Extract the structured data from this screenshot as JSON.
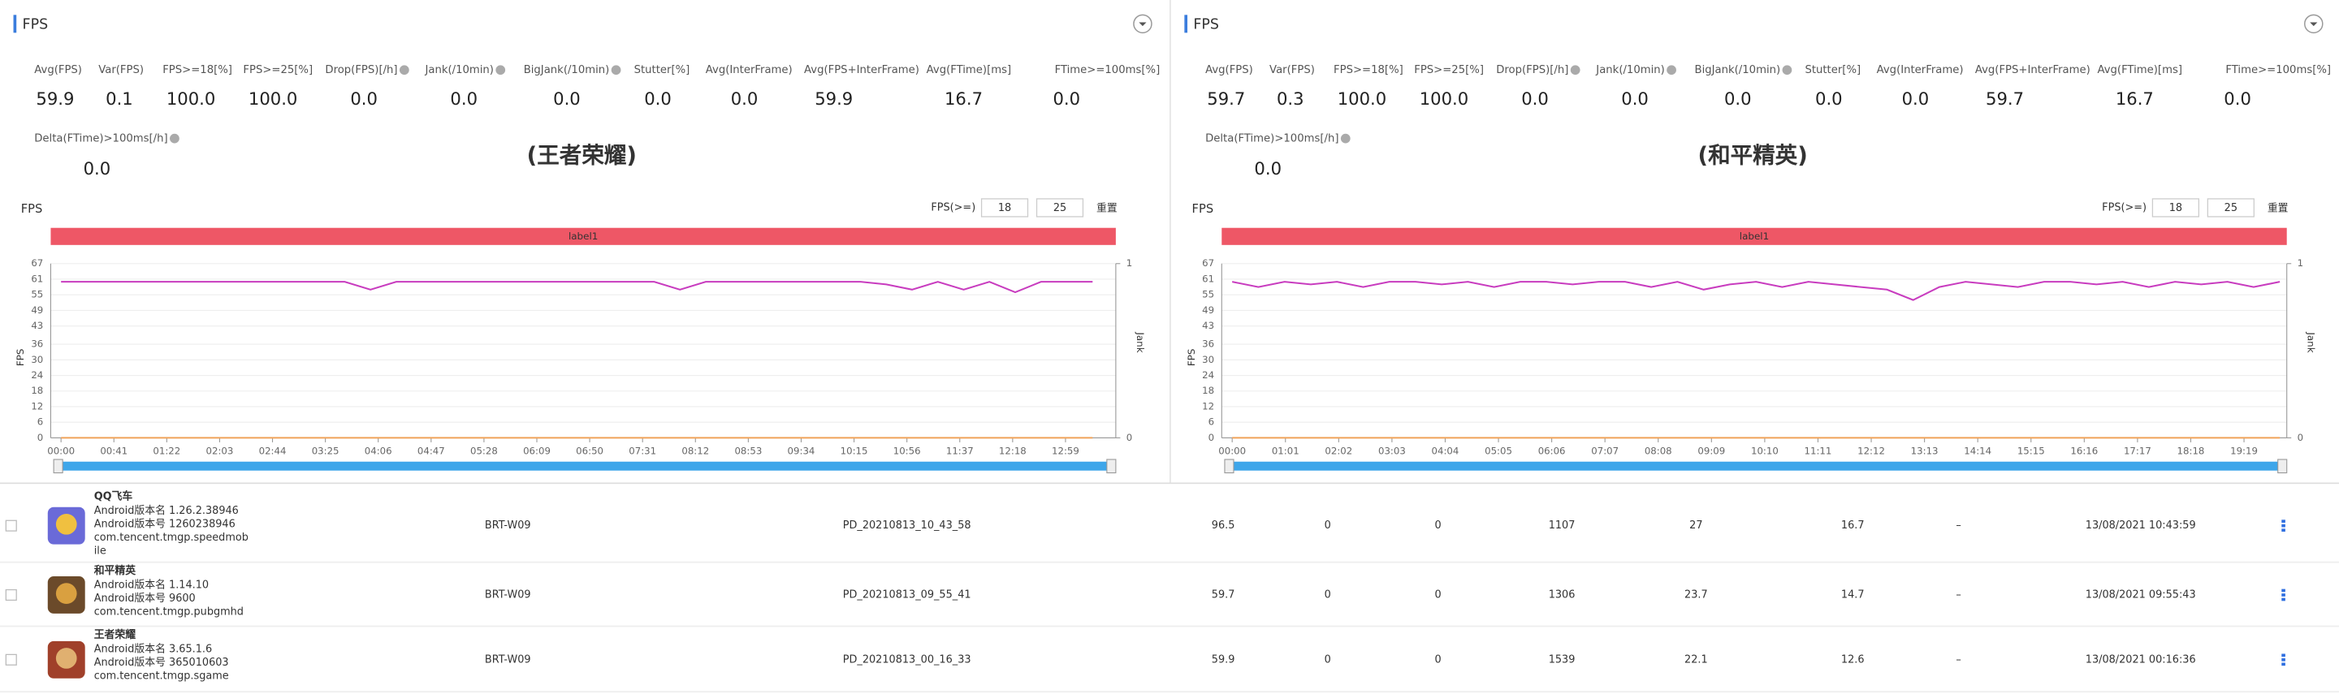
{
  "panels": [
    {
      "title": "FPS",
      "metrics": [
        {
          "label": "Avg(FPS)",
          "value": "59.9"
        },
        {
          "label": "Var(FPS)",
          "value": "0.1"
        },
        {
          "label": "FPS>=18[%]",
          "value": "100.0"
        },
        {
          "label": "FPS>=25[%]",
          "value": "100.0"
        },
        {
          "label": "Drop(FPS)[/h]",
          "value": "0.0"
        },
        {
          "label": "Jank(/10min)",
          "value": "0.0"
        },
        {
          "label": "BigJank(/10min)",
          "value": "0.0"
        },
        {
          "label": "Stutter[%]",
          "value": "0.0"
        },
        {
          "label": "Avg(InterFrame)",
          "value": "0.0"
        },
        {
          "label": "Avg(FPS+InterFrame)",
          "value": "59.9"
        },
        {
          "label": "Avg(FTime)[ms]",
          "value": "16.7"
        },
        {
          "label": "FTime>=100ms[%]",
          "value": "0.0"
        },
        {
          "label": "Delta(FTime)>100ms[/h]",
          "value": "0.0"
        }
      ],
      "annotation": "(王者荣耀)",
      "threshold_label": "FPS(>=)",
      "thresholds": [
        18,
        25
      ],
      "reset": "重置"
    },
    {
      "title": "FPS",
      "metrics": [
        {
          "label": "Avg(FPS)",
          "value": "59.7"
        },
        {
          "label": "Var(FPS)",
          "value": "0.3"
        },
        {
          "label": "FPS>=18[%]",
          "value": "100.0"
        },
        {
          "label": "FPS>=25[%]",
          "value": "100.0"
        },
        {
          "label": "Drop(FPS)[/h]",
          "value": "0.0"
        },
        {
          "label": "Jank(/10min)",
          "value": "0.0"
        },
        {
          "label": "BigJank(/10min)",
          "value": "0.0"
        },
        {
          "label": "Stutter[%]",
          "value": "0.0"
        },
        {
          "label": "Avg(InterFrame)",
          "value": "0.0"
        },
        {
          "label": "Avg(FPS+InterFrame)",
          "value": "59.7"
        },
        {
          "label": "Avg(FTime)[ms]",
          "value": "16.7"
        },
        {
          "label": "FTime>=100ms[%]",
          "value": "0.0"
        },
        {
          "label": "Delta(FTime)>100ms[/h]",
          "value": "0.0"
        }
      ],
      "annotation": "(和平精英)",
      "threshold_label": "FPS(>=)",
      "thresholds": [
        18,
        25
      ],
      "reset": "重置"
    }
  ],
  "chart_data": [
    {
      "type": "line",
      "title": "FPS",
      "band_label": "label1",
      "y_label": "FPS",
      "y2_label": "Jank",
      "xlim": [
        -8,
        818
      ],
      "xticks": [
        {
          "value": 0,
          "label": "00:00"
        },
        {
          "value": 41,
          "label": "00:41"
        },
        {
          "value": 82,
          "label": "01:22"
        },
        {
          "value": 123,
          "label": "02:03"
        },
        {
          "value": 164,
          "label": "02:44"
        },
        {
          "value": 205,
          "label": "03:25"
        },
        {
          "value": 246,
          "label": "04:06"
        },
        {
          "value": 287,
          "label": "04:47"
        },
        {
          "value": 328,
          "label": "05:28"
        },
        {
          "value": 369,
          "label": "06:09"
        },
        {
          "value": 410,
          "label": "06:50"
        },
        {
          "value": 451,
          "label": "07:31"
        },
        {
          "value": 492,
          "label": "08:12"
        },
        {
          "value": 533,
          "label": "08:53"
        },
        {
          "value": 574,
          "label": "09:34"
        },
        {
          "value": 615,
          "label": "10:15"
        },
        {
          "value": 656,
          "label": "10:56"
        },
        {
          "value": 697,
          "label": "11:37"
        },
        {
          "value": 738,
          "label": "12:18"
        },
        {
          "value": 779,
          "label": "12:59"
        }
      ],
      "ylim": [
        0,
        67
      ],
      "yticks": [
        0,
        6,
        12,
        18,
        24,
        30,
        36,
        43,
        49,
        55,
        61,
        67
      ],
      "y2lim": [
        0,
        1
      ],
      "y2ticks": [
        0,
        1
      ],
      "x": [
        0,
        20,
        40,
        60,
        80,
        100,
        120,
        140,
        160,
        180,
        200,
        220,
        240,
        260,
        280,
        300,
        320,
        340,
        360,
        380,
        400,
        420,
        440,
        460,
        480,
        500,
        520,
        540,
        560,
        580,
        600,
        620,
        640,
        660,
        680,
        700,
        720,
        740,
        760,
        780,
        800
      ],
      "series": [
        {
          "name": "FPS",
          "color": "#c83cbf",
          "values": [
            60,
            60,
            60,
            60,
            60,
            60,
            60,
            60,
            60,
            60,
            60,
            60,
            57,
            60,
            60,
            60,
            60,
            60,
            60,
            60,
            60,
            60,
            60,
            60,
            57,
            60,
            60,
            60,
            60,
            60,
            60,
            60,
            59,
            57,
            60,
            57,
            60,
            56,
            60,
            60,
            60
          ]
        },
        {
          "name": "Jank",
          "color": "#f0a35a",
          "axis": "y2",
          "values": [
            0,
            0,
            0,
            0,
            0,
            0,
            0,
            0,
            0,
            0,
            0,
            0,
            0,
            0,
            0,
            0,
            0,
            0,
            0,
            0,
            0,
            0,
            0,
            0,
            0,
            0,
            0,
            0,
            0,
            0,
            0,
            0,
            0,
            0,
            0,
            0,
            0,
            0,
            0,
            0,
            0
          ]
        }
      ]
    },
    {
      "type": "line",
      "title": "FPS",
      "band_label": "label1",
      "y_label": "FPS",
      "y2_label": "Jank",
      "xlim": [
        -12,
        1208
      ],
      "xticks": [
        {
          "value": 0,
          "label": "00:00"
        },
        {
          "value": 61,
          "label": "01:01"
        },
        {
          "value": 122,
          "label": "02:02"
        },
        {
          "value": 183,
          "label": "03:03"
        },
        {
          "value": 244,
          "label": "04:04"
        },
        {
          "value": 305,
          "label": "05:05"
        },
        {
          "value": 366,
          "label": "06:06"
        },
        {
          "value": 427,
          "label": "07:07"
        },
        {
          "value": 488,
          "label": "08:08"
        },
        {
          "value": 549,
          "label": "09:09"
        },
        {
          "value": 610,
          "label": "10:10"
        },
        {
          "value": 671,
          "label": "11:11"
        },
        {
          "value": 732,
          "label": "12:12"
        },
        {
          "value": 793,
          "label": "13:13"
        },
        {
          "value": 854,
          "label": "14:14"
        },
        {
          "value": 915,
          "label": "15:15"
        },
        {
          "value": 976,
          "label": "16:16"
        },
        {
          "value": 1037,
          "label": "17:17"
        },
        {
          "value": 1098,
          "label": "18:18"
        },
        {
          "value": 1159,
          "label": "19:19"
        }
      ],
      "ylim": [
        0,
        67
      ],
      "yticks": [
        0,
        6,
        12,
        18,
        24,
        30,
        36,
        43,
        49,
        55,
        61,
        67
      ],
      "y2lim": [
        0,
        1
      ],
      "y2ticks": [
        0,
        1
      ],
      "x": [
        0,
        30,
        60,
        90,
        120,
        150,
        180,
        210,
        240,
        270,
        300,
        330,
        360,
        390,
        420,
        450,
        480,
        510,
        540,
        570,
        600,
        630,
        660,
        690,
        720,
        750,
        780,
        810,
        840,
        870,
        900,
        930,
        960,
        990,
        1020,
        1050,
        1080,
        1110,
        1140,
        1170,
        1200
      ],
      "series": [
        {
          "name": "FPS",
          "color": "#c83cbf",
          "values": [
            60,
            58,
            60,
            59,
            60,
            58,
            60,
            60,
            59,
            60,
            58,
            60,
            60,
            59,
            60,
            60,
            58,
            60,
            57,
            59,
            60,
            58,
            60,
            59,
            58,
            57,
            53,
            58,
            60,
            59,
            58,
            60,
            60,
            59,
            60,
            58,
            60,
            59,
            60,
            58,
            60
          ]
        },
        {
          "name": "Jank",
          "color": "#f0a35a",
          "axis": "y2",
          "values": [
            0,
            0,
            0,
            0,
            0,
            0,
            0,
            0,
            0,
            0,
            0,
            0,
            0,
            0,
            0,
            0,
            0,
            0,
            0,
            0,
            0,
            0,
            0,
            0,
            0,
            0,
            0,
            0,
            0,
            0,
            0,
            0,
            0,
            0,
            0,
            0,
            0,
            0,
            0,
            0,
            0
          ]
        }
      ]
    }
  ],
  "table": {
    "rows": [
      {
        "name": "QQ飞车",
        "version_name": "Android版本名 1.26.2.38946",
        "version_code": "Android版本号 1260238946",
        "package": [
          "com.tencent.tmgp.speedmob",
          "ile"
        ],
        "device": "BRT-W09",
        "file": "PD_20210813_10_43_58",
        "cells": [
          96.5,
          0,
          0,
          1107,
          27,
          16.7,
          "–"
        ],
        "time": "13/08/2021 10:43:59"
      },
      {
        "name": "和平精英",
        "version_name": "Android版本名 1.14.10",
        "version_code": "Android版本号 9600",
        "package": [
          "com.tencent.tmgp.pubgmhd"
        ],
        "device": "BRT-W09",
        "file": "PD_20210813_09_55_41",
        "cells": [
          59.7,
          0,
          0,
          1306,
          23.7,
          14.7,
          "–"
        ],
        "time": "13/08/2021 09:55:43"
      },
      {
        "name": "王者荣耀",
        "version_name": "Android版本名 3.65.1.6",
        "version_code": "Android版本号 365010603",
        "package": [
          "com.tencent.tmgp.sgame"
        ],
        "device": "BRT-W09",
        "file": "PD_20210813_00_16_33",
        "cells": [
          59.9,
          0,
          0,
          1539,
          22.1,
          12.6,
          "–"
        ],
        "time": "13/08/2021 00:16:36"
      }
    ]
  }
}
